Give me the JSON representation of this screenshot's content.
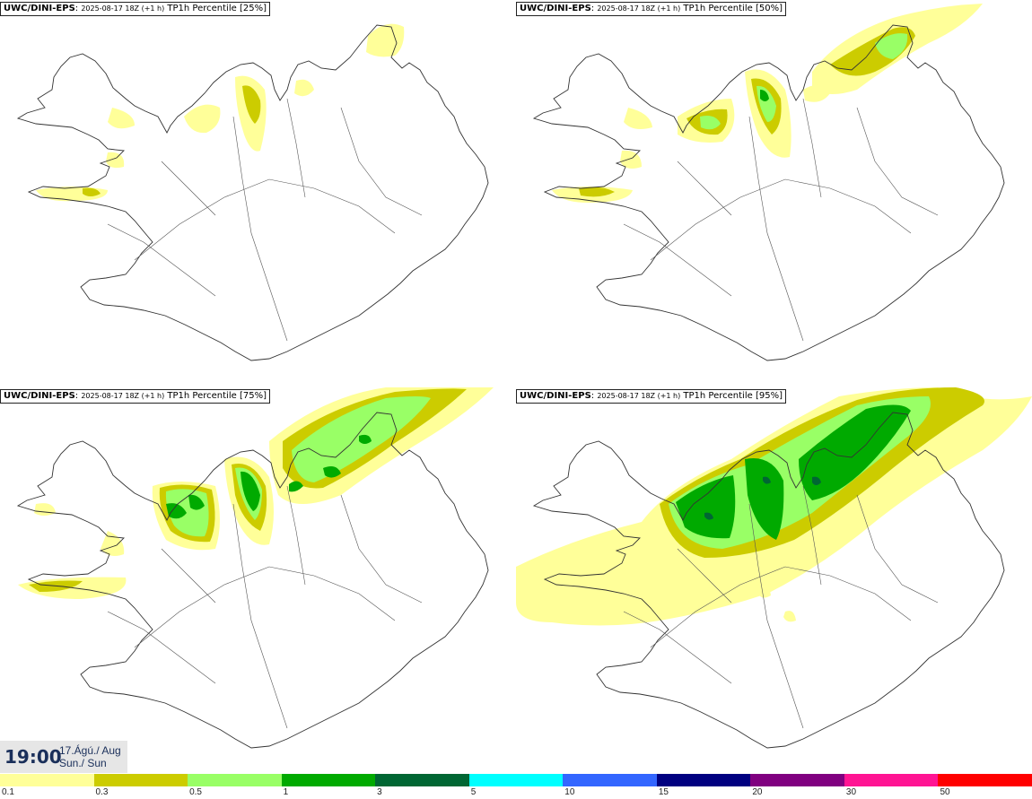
{
  "panels": [
    {
      "model": "UWC/DINI-EPS",
      "run": "2025-08-17 18Z (+1 h)",
      "title": "TP1h Percentile [25%]",
      "percentile": 25
    },
    {
      "model": "UWC/DINI-EPS",
      "run": "2025-08-17 18Z (+1 h)",
      "title": "TP1h Percentile [50%]",
      "percentile": 50
    },
    {
      "model": "UWC/DINI-EPS",
      "run": "2025-08-17 18Z (+1 h)",
      "title": "TP1h Percentile [75%]",
      "percentile": 75
    },
    {
      "model": "UWC/DINI-EPS",
      "run": "2025-08-17 18Z (+1 h)",
      "title": "TP1h Percentile [95%]",
      "percentile": 95
    }
  ],
  "valid_time": {
    "time": "19:00",
    "date_line1": "17.Ágú./ Aug",
    "date_line2": "Sun./ Sun"
  },
  "legend": {
    "colors": [
      "#ffff99",
      "#cccc00",
      "#99ff66",
      "#00aa00",
      "#006633",
      "#00ffff",
      "#3366ff",
      "#000080",
      "#800080",
      "#ff1493",
      "#ff0000"
    ],
    "ticks": [
      "0.1",
      "0.3",
      "0.5",
      "1",
      "3",
      "5",
      "10",
      "15",
      "20",
      "30",
      "50"
    ]
  }
}
